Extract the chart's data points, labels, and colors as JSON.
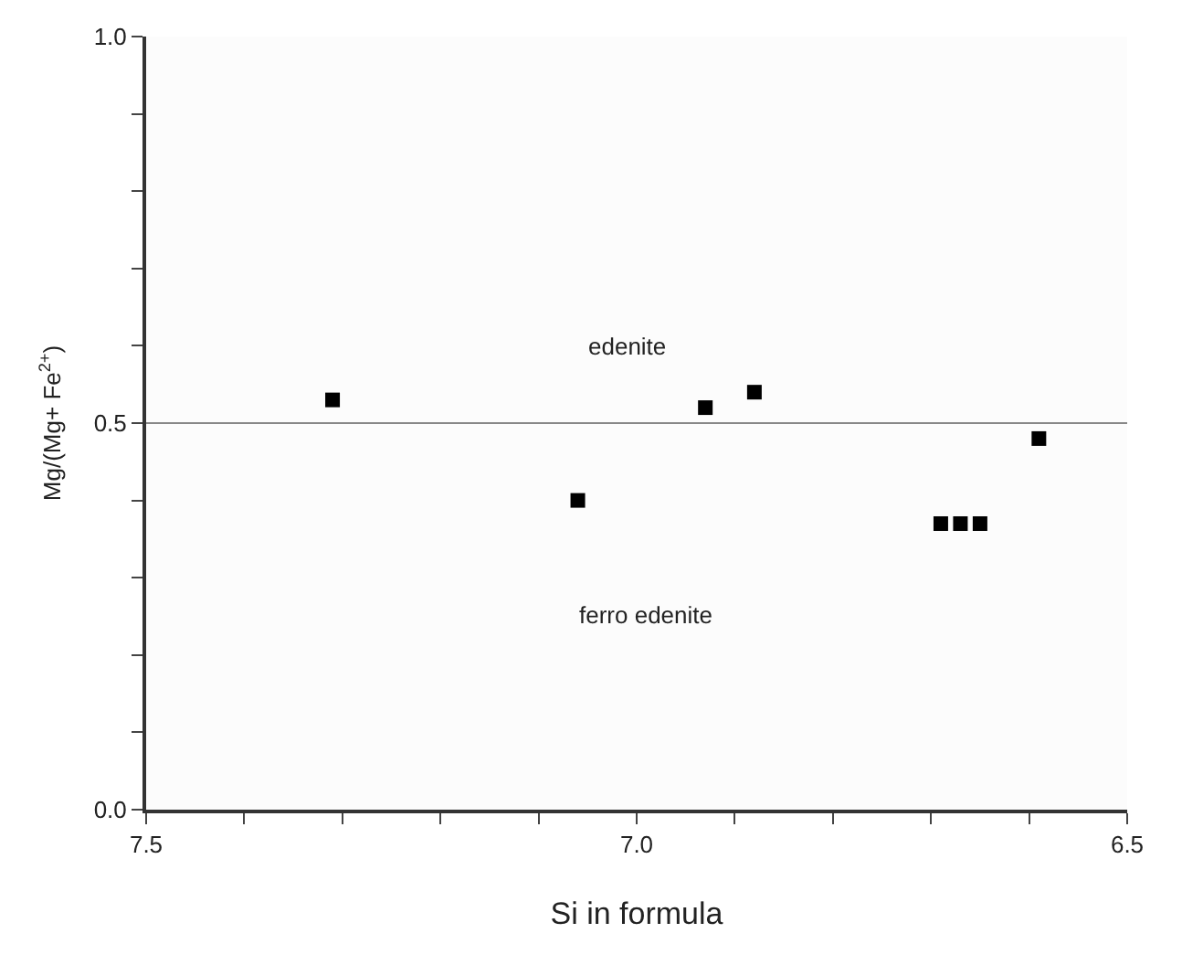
{
  "chart_data": {
    "type": "scatter",
    "xlabel": "Si in formula",
    "ylabel": "Mg/(Mg+ Fe$^{2+}$)",
    "xlim": [
      7.5,
      6.5
    ],
    "ylim": [
      0.0,
      1.0
    ],
    "xticks": [
      {
        "value": 7.5,
        "label": "7.5"
      },
      {
        "value": 7.4,
        "label": null
      },
      {
        "value": 7.3,
        "label": null
      },
      {
        "value": 7.2,
        "label": null
      },
      {
        "value": 7.1,
        "label": null
      },
      {
        "value": 7.0,
        "label": "7.0"
      },
      {
        "value": 6.9,
        "label": null
      },
      {
        "value": 6.8,
        "label": null
      },
      {
        "value": 6.7,
        "label": null
      },
      {
        "value": 6.6,
        "label": null
      },
      {
        "value": 6.5,
        "label": "6.5"
      }
    ],
    "yticks": [
      {
        "value": 0.0,
        "label": "0.0"
      },
      {
        "value": 0.1,
        "label": null
      },
      {
        "value": 0.2,
        "label": null
      },
      {
        "value": 0.3,
        "label": null
      },
      {
        "value": 0.4,
        "label": null
      },
      {
        "value": 0.5,
        "label": "0.5"
      },
      {
        "value": 0.6,
        "label": null
      },
      {
        "value": 0.7,
        "label": null
      },
      {
        "value": 0.8,
        "label": null
      },
      {
        "value": 0.9,
        "label": null
      },
      {
        "value": 1.0,
        "label": "1.0"
      }
    ],
    "x": [
      7.31,
      7.06,
      6.93,
      6.88,
      6.69,
      6.67,
      6.65,
      6.59
    ],
    "series": [
      {
        "color": "#000000",
        "values": [
          0.53,
          0.4,
          0.52,
          0.54,
          0.37,
          0.37,
          0.37,
          0.48
        ]
      }
    ],
    "marker": "square",
    "ref_lines": [
      {
        "axis": "y",
        "value": 0.5,
        "color": "#888888"
      }
    ],
    "annotations": [
      "edenite",
      "ferro edenite"
    ]
  }
}
